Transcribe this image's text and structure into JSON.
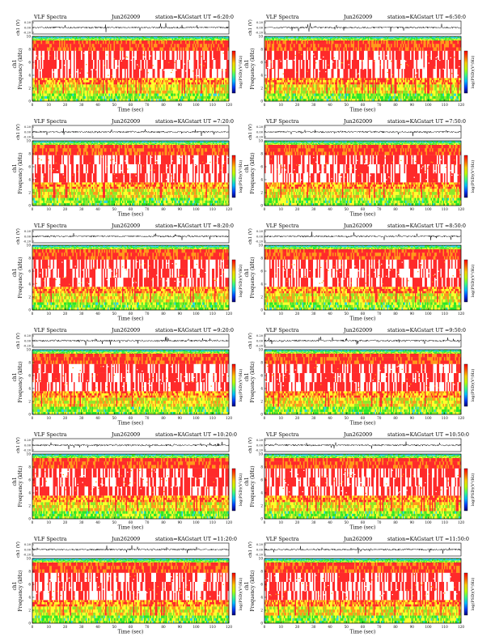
{
  "page": {
    "background": "#ffffff"
  },
  "palette": {
    "spectrogram": [
      "#ffffff",
      "#ff2a2a",
      "#ff9a1a",
      "#ffff2a",
      "#8ee82a",
      "#2ae82a",
      "#2ad6e8",
      "#1e8cff",
      "#1010c0"
    ],
    "colorbar": [
      "#00007f",
      "#0040ff",
      "#00c0ff",
      "#40ff80",
      "#c0ff00",
      "#ffd000",
      "#ff6000",
      "#ff0000"
    ]
  },
  "chart_data": [
    {
      "type": "heatmap",
      "title_left": "VLF Spectra",
      "date": "Jun262009",
      "station": "station=KAG",
      "start": "start UT =6:20:0",
      "top_ylabel": "ch1 (V)",
      "top_ticks": [
        "0.20",
        "0.00",
        "-0.20"
      ],
      "ylabel": "Frequency (kHz)",
      "ylabel_prefix": "ch1",
      "yticks": [
        "0",
        "2",
        "4",
        "6",
        "8",
        "10"
      ],
      "ylim": [
        0,
        10
      ],
      "xlabel": "Time (sec)",
      "xticks": [
        "0",
        "10",
        "20",
        "30",
        "40",
        "50",
        "60",
        "70",
        "80",
        "90",
        "100",
        "110",
        "120"
      ],
      "xlim": [
        0,
        120
      ],
      "colorbar_label": "log(PSD)(V²/Hz)",
      "grid": false
    },
    {
      "type": "heatmap",
      "title_left": "VLF Spectra",
      "date": "Jun262009",
      "station": "station=KAG",
      "start": "start UT =6:50:0",
      "top_ylabel": "ch1 (V)",
      "top_ticks": [
        "0.20",
        "0.00",
        "-0.20"
      ],
      "ylabel": "Frequency (kHz)",
      "ylabel_prefix": "ch1",
      "yticks": [
        "0",
        "2",
        "4",
        "6",
        "8",
        "10"
      ],
      "ylim": [
        0,
        10
      ],
      "xlabel": "Time (sec)",
      "xticks": [
        "0",
        "10",
        "20",
        "30",
        "40",
        "50",
        "60",
        "70",
        "80",
        "90",
        "100",
        "110",
        "120"
      ],
      "xlim": [
        0,
        120
      ],
      "colorbar_label": "log(PSD)(V²/Hz)",
      "grid": false
    },
    {
      "type": "heatmap",
      "title_left": "VLF Spectra",
      "date": "Jun262009",
      "station": "station=KAG",
      "start": "start UT =7:20:0",
      "top_ylabel": "ch1 (V)",
      "top_ticks": [
        "0.20",
        "0.00",
        "-0.20"
      ],
      "ylabel": "Frequency (kHz)",
      "ylabel_prefix": "ch1",
      "yticks": [
        "0",
        "2",
        "4",
        "6",
        "8",
        "10"
      ],
      "ylim": [
        0,
        10
      ],
      "xlabel": "Time (sec)",
      "xticks": [
        "0",
        "10",
        "20",
        "30",
        "40",
        "50",
        "60",
        "70",
        "80",
        "90",
        "100",
        "110",
        "120"
      ],
      "xlim": [
        0,
        120
      ],
      "colorbar_label": "log(PSD)(V²/Hz)",
      "grid": false
    },
    {
      "type": "heatmap",
      "title_left": "VLF Spectra",
      "date": "Jun262009",
      "station": "station=KAG",
      "start": "start UT =7:50:0",
      "top_ylabel": "ch1 (V)",
      "top_ticks": [
        "0.20",
        "0.00",
        "-0.20"
      ],
      "ylabel": "Frequency (kHz)",
      "ylabel_prefix": "ch1",
      "yticks": [
        "0",
        "2",
        "4",
        "6",
        "8",
        "10"
      ],
      "ylim": [
        0,
        10
      ],
      "xlabel": "Time (sec)",
      "xticks": [
        "0",
        "10",
        "20",
        "30",
        "40",
        "50",
        "60",
        "70",
        "80",
        "90",
        "100",
        "110",
        "120"
      ],
      "xlim": [
        0,
        120
      ],
      "colorbar_label": "log(PSD)(V²/Hz)",
      "grid": false
    },
    {
      "type": "heatmap",
      "title_left": "VLF Spectra",
      "date": "Jun262009",
      "station": "station=KAG",
      "start": "start UT =8:20:0",
      "top_ylabel": "ch1 (V)",
      "top_ticks": [
        "0.20",
        "0.00",
        "-0.20"
      ],
      "ylabel": "Frequency (kHz)",
      "ylabel_prefix": "ch1",
      "yticks": [
        "0",
        "2",
        "4",
        "6",
        "8",
        "10"
      ],
      "ylim": [
        0,
        10
      ],
      "xlabel": "Time (sec)",
      "xticks": [
        "0",
        "10",
        "20",
        "30",
        "40",
        "50",
        "60",
        "70",
        "80",
        "90",
        "100",
        "110",
        "120"
      ],
      "xlim": [
        0,
        120
      ],
      "colorbar_label": "log(PSD)(V²/Hz)",
      "grid": false
    },
    {
      "type": "heatmap",
      "title_left": "VLF Spectra",
      "date": "Jun262009",
      "station": "station=KAG",
      "start": "start UT =8:50:0",
      "top_ylabel": "ch1 (V)",
      "top_ticks": [
        "0.20",
        "0.00",
        "-0.20"
      ],
      "ylabel": "Frequency (kHz)",
      "ylabel_prefix": "ch1",
      "yticks": [
        "0",
        "2",
        "4",
        "6",
        "8",
        "10"
      ],
      "ylim": [
        0,
        10
      ],
      "xlabel": "Time (sec)",
      "xticks": [
        "0",
        "10",
        "20",
        "30",
        "40",
        "50",
        "60",
        "70",
        "80",
        "90",
        "100",
        "110",
        "120"
      ],
      "xlim": [
        0,
        120
      ],
      "colorbar_label": "log(PSD)(V²/Hz)",
      "grid": false
    },
    {
      "type": "heatmap",
      "title_left": "VLF Spectra",
      "date": "Jun262009",
      "station": "station=KAG",
      "start": "start UT =9:20:0",
      "top_ylabel": "ch1 (V)",
      "top_ticks": [
        "0.20",
        "0.00",
        "-0.20"
      ],
      "ylabel": "Frequency (kHz)",
      "ylabel_prefix": "ch1",
      "yticks": [
        "0",
        "2",
        "4",
        "6",
        "8",
        "10"
      ],
      "ylim": [
        0,
        10
      ],
      "xlabel": "Time (sec)",
      "xticks": [
        "0",
        "10",
        "20",
        "30",
        "40",
        "50",
        "60",
        "70",
        "80",
        "90",
        "100",
        "110",
        "120"
      ],
      "xlim": [
        0,
        120
      ],
      "colorbar_label": "log(PSD)(V²/Hz)",
      "grid": false
    },
    {
      "type": "heatmap",
      "title_left": "VLF Spectra",
      "date": "Jun262009",
      "station": "station=KAG",
      "start": "start UT =9:50:0",
      "top_ylabel": "ch1 (V)",
      "top_ticks": [
        "0.20",
        "0.00",
        "-0.20"
      ],
      "ylabel": "Frequency (kHz)",
      "ylabel_prefix": "ch1",
      "yticks": [
        "0",
        "2",
        "4",
        "6",
        "8",
        "10"
      ],
      "ylim": [
        0,
        10
      ],
      "xlabel": "Time (sec)",
      "xticks": [
        "0",
        "10",
        "20",
        "30",
        "40",
        "50",
        "60",
        "70",
        "80",
        "90",
        "100",
        "110",
        "120"
      ],
      "xlim": [
        0,
        120
      ],
      "colorbar_label": "log(PSD)(V²/Hz)",
      "grid": false
    },
    {
      "type": "heatmap",
      "title_left": "VLF Spectra",
      "date": "Jun262009",
      "station": "station=KAG",
      "start": "start UT =10:20:0",
      "top_ylabel": "ch1 (V)",
      "top_ticks": [
        "0.20",
        "0.00",
        "-0.20"
      ],
      "ylabel": "Frequency (kHz)",
      "ylabel_prefix": "ch1",
      "yticks": [
        "0",
        "2",
        "4",
        "6",
        "8",
        "10"
      ],
      "ylim": [
        0,
        10
      ],
      "xlabel": "Time (sec)",
      "xticks": [
        "0",
        "10",
        "20",
        "30",
        "40",
        "50",
        "60",
        "70",
        "80",
        "90",
        "100",
        "110",
        "120"
      ],
      "xlim": [
        0,
        120
      ],
      "colorbar_label": "log(PSD)(V²/Hz)",
      "grid": false
    },
    {
      "type": "heatmap",
      "title_left": "VLF Spectra",
      "date": "Jun262009",
      "station": "station=KAG",
      "start": "start UT =10:50:0",
      "top_ylabel": "ch1 (V)",
      "top_ticks": [
        "0.20",
        "0.00",
        "-0.20"
      ],
      "ylabel": "Frequency (kHz)",
      "ylabel_prefix": "ch1",
      "yticks": [
        "0",
        "2",
        "4",
        "6",
        "8",
        "10"
      ],
      "ylim": [
        0,
        10
      ],
      "xlabel": "Time (sec)",
      "xticks": [
        "0",
        "10",
        "20",
        "30",
        "40",
        "50",
        "60",
        "70",
        "80",
        "90",
        "100",
        "110",
        "120"
      ],
      "xlim": [
        0,
        120
      ],
      "colorbar_label": "log(PSD)(V²/Hz)",
      "grid": false
    },
    {
      "type": "heatmap",
      "title_left": "VLF Spectra",
      "date": "Jun262009",
      "station": "station=KAG",
      "start": "start UT =11:20:0",
      "top_ylabel": "ch1 (V)",
      "top_ticks": [
        "0.20",
        "0.00",
        "-0.20"
      ],
      "ylabel": "Frequency (kHz)",
      "ylabel_prefix": "ch1",
      "yticks": [
        "0",
        "2",
        "4",
        "6",
        "8",
        "10"
      ],
      "ylim": [
        0,
        10
      ],
      "xlabel": "Time (sec)",
      "xticks": [
        "0",
        "10",
        "20",
        "30",
        "40",
        "50",
        "60",
        "70",
        "80",
        "90",
        "100",
        "110",
        "120"
      ],
      "xlim": [
        0,
        120
      ],
      "colorbar_label": "log(PSD)(V²/Hz)",
      "grid": false
    },
    {
      "type": "heatmap",
      "title_left": "VLF Spectra",
      "date": "Jun262009",
      "station": "station=KAG",
      "start": "start UT =11:50:0",
      "top_ylabel": "ch1 (V)",
      "top_ticks": [
        "0.20",
        "0.00",
        "-0.20"
      ],
      "ylabel": "Frequency (kHz)",
      "ylabel_prefix": "ch1",
      "yticks": [
        "0",
        "2",
        "4",
        "6",
        "8",
        "10"
      ],
      "ylim": [
        0,
        10
      ],
      "xlabel": "Time (sec)",
      "xticks": [
        "0",
        "10",
        "20",
        "30",
        "40",
        "50",
        "60",
        "70",
        "80",
        "90",
        "100",
        "110",
        "120"
      ],
      "xlim": [
        0,
        120
      ],
      "colorbar_label": "log(PSD)(V²/Hz)",
      "grid": false
    }
  ]
}
